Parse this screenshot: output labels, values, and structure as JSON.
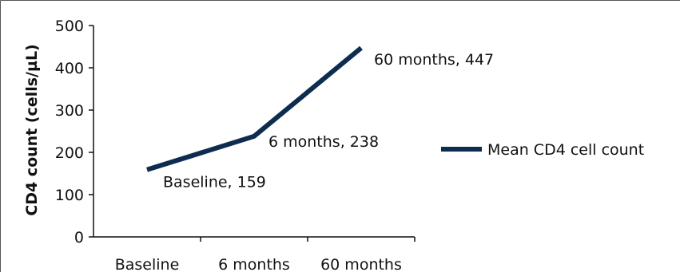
{
  "chart_data": {
    "type": "line",
    "categories": [
      "Baseline",
      "6 months",
      "60 months"
    ],
    "series": [
      {
        "name": "Mean CD4 cell count",
        "values": [
          159,
          238,
          447
        ],
        "color": "#0d2c4f"
      }
    ],
    "data_labels": [
      "Baseline, 159",
      "6 months, 238",
      "60 months, 447"
    ],
    "ylabel": "CD4 count (cells/µL)",
    "xlabel": "",
    "ylim": [
      0,
      500
    ],
    "yticks": [
      0,
      100,
      200,
      300,
      400,
      500
    ],
    "grid": false,
    "legend_position": "right",
    "axis_color": "#111111",
    "frame_color": "#555555"
  }
}
